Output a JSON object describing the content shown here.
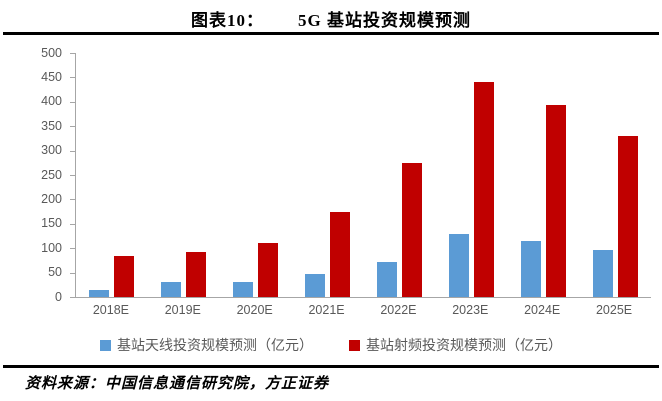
{
  "title": {
    "prefix": "图表10：",
    "text": "5G 基站投资规模预测"
  },
  "chart_data": {
    "type": "bar",
    "title": "5G 基站投资规模预测",
    "categories": [
      "2018E",
      "2019E",
      "2020E",
      "2021E",
      "2022E",
      "2023E",
      "2024E",
      "2025E"
    ],
    "series": [
      {
        "name": "基站天线投资规模预测（亿元）",
        "color": "#5B9BD5",
        "values": [
          15,
          30,
          30,
          47,
          72,
          130,
          115,
          97
        ]
      },
      {
        "name": "基站射频投资规模预测（亿元）",
        "color": "#C00000",
        "values": [
          85,
          93,
          110,
          175,
          275,
          440,
          393,
          330
        ]
      }
    ],
    "xlabel": "",
    "ylabel": "",
    "ylim": [
      0,
      500
    ],
    "yticks": [
      0,
      50,
      100,
      150,
      200,
      250,
      300,
      350,
      400,
      450,
      500
    ],
    "grid": false,
    "legend_position": "bottom",
    "axis_color": "#a6a6a6",
    "tick_label_color": "#595959"
  },
  "source": "资料来源：中国信息通信研究院，方正证券"
}
